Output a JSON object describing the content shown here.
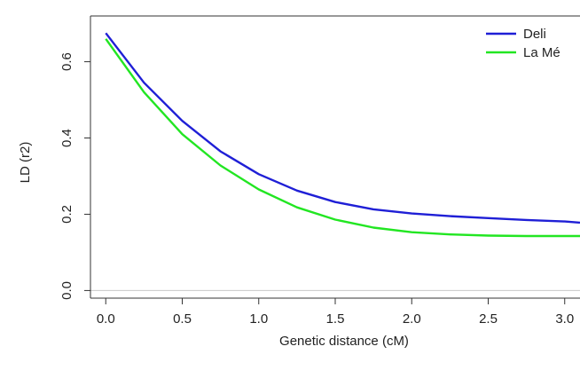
{
  "chart_data": {
    "type": "line",
    "title": "",
    "xlabel": "Genetic distance (cM)",
    "ylabel": "LD (r2)",
    "xlim": [
      -0.1,
      3.1
    ],
    "ylim": [
      -0.02,
      0.72
    ],
    "xticks": [
      0.0,
      0.5,
      1.0,
      1.5,
      2.0,
      2.5,
      3.0
    ],
    "xtick_labels": [
      "0.0",
      "0.5",
      "1.0",
      "1.5",
      "2.0",
      "2.5",
      "3.0"
    ],
    "yticks": [
      0.0,
      0.2,
      0.4,
      0.6
    ],
    "ytick_labels": [
      "0.0",
      "0.2",
      "0.4",
      "0.6"
    ],
    "grid": false,
    "reference_line_y": 0.0,
    "legend": {
      "position": "top-right",
      "entries": [
        {
          "label": "Deli",
          "color": "#1f1fd6"
        },
        {
          "label": "La Mé",
          "color": "#22e622"
        }
      ]
    },
    "series": [
      {
        "name": "Deli",
        "color": "#1f1fd6",
        "x": [
          0.0,
          0.25,
          0.5,
          0.75,
          1.0,
          1.25,
          1.5,
          1.75,
          2.0,
          2.25,
          2.5,
          2.75,
          3.0,
          3.1
        ],
        "y": [
          0.675,
          0.545,
          0.445,
          0.365,
          0.305,
          0.262,
          0.232,
          0.213,
          0.202,
          0.195,
          0.19,
          0.185,
          0.181,
          0.178
        ]
      },
      {
        "name": "La Mé",
        "color": "#22e622",
        "x": [
          0.0,
          0.25,
          0.5,
          0.75,
          1.0,
          1.25,
          1.5,
          1.75,
          2.0,
          2.25,
          2.5,
          2.75,
          3.0,
          3.1
        ],
        "y": [
          0.66,
          0.52,
          0.41,
          0.328,
          0.265,
          0.218,
          0.186,
          0.165,
          0.153,
          0.147,
          0.144,
          0.143,
          0.143,
          0.143
        ]
      }
    ]
  }
}
